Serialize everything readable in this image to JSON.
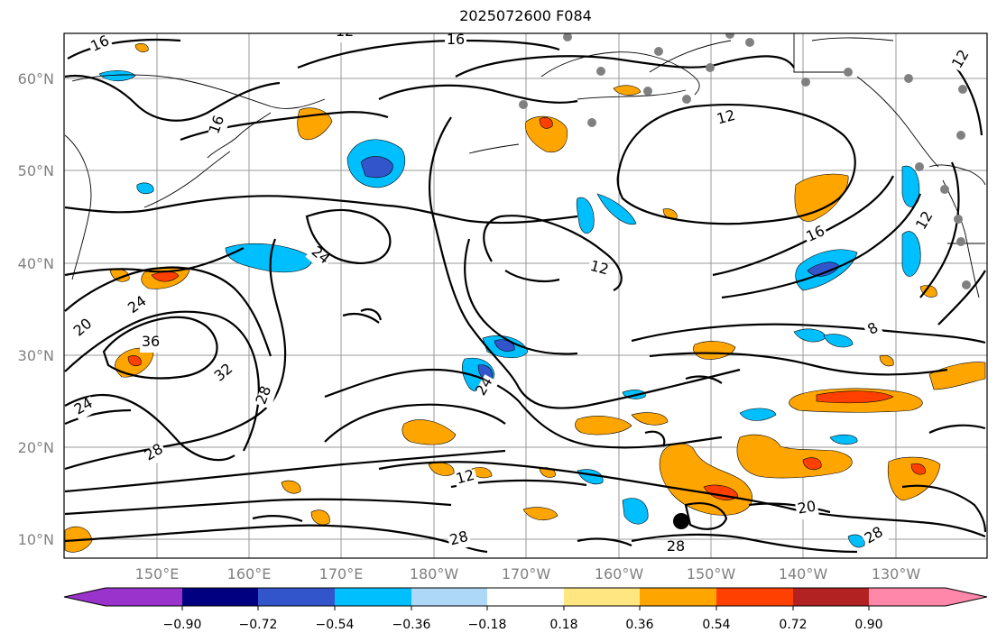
{
  "title": "2025072600 F084",
  "lat_labels": [
    "60°N",
    "50°N",
    "40°N",
    "30°N",
    "20°N",
    "10°N"
  ],
  "lon_labels": [
    "150°E",
    "160°E",
    "170°E",
    "180°W",
    "170°W",
    "160°W",
    "150°W",
    "140°W",
    "130°W"
  ],
  "contour_labels": [
    "16",
    "12",
    "16",
    "16",
    "12",
    "16",
    "12",
    "24",
    "12",
    "24",
    "20",
    "36",
    "32",
    "28",
    "24",
    "24",
    "28",
    "12",
    "20",
    "28",
    "28",
    "28",
    "8",
    "12"
  ],
  "colorbar": {
    "tick_labels": [
      "−0.90",
      "−0.72",
      "−0.54",
      "−0.36",
      "−0.18",
      "0.18",
      "0.36",
      "0.54",
      "0.72",
      "0.90"
    ],
    "colors": [
      "#9933cc",
      "#000080",
      "#3355cc",
      "#00bfff",
      "#add8f7",
      "#ffffff",
      "#ffe680",
      "#ffa500",
      "#ff4000",
      "#b22222",
      "#ff88aa"
    ]
  },
  "markers": {
    "storm_center": "filled black circle",
    "stations": "gray dots"
  }
}
